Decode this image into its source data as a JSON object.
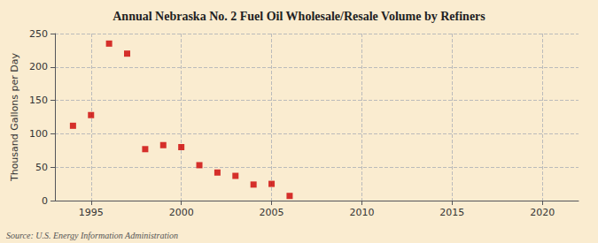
{
  "chart_data": {
    "type": "scatter",
    "title": "Annual Nebraska No. 2 Fuel Oil Wholesale/Resale Volume by Refiners",
    "ylabel": "Thousand Gallons per Day",
    "annotation": "Source: U.S. Energy Information Administration",
    "x": [
      1994,
      1995,
      1996,
      1997,
      1998,
      1999,
      2000,
      2001,
      2002,
      2003,
      2004,
      2005,
      2006
    ],
    "values": [
      112,
      128,
      235,
      220,
      77,
      83,
      80,
      53,
      42,
      37,
      24,
      25,
      7
    ],
    "color": "#cc0000",
    "marker": "square",
    "xlim": [
      1993,
      2022
    ],
    "ylim": [
      0,
      250
    ],
    "xticks": [
      1995,
      2000,
      2005,
      2010,
      2015,
      2020
    ],
    "yticks": [
      0,
      50,
      100,
      150,
      200,
      250
    ],
    "grid": true
  }
}
